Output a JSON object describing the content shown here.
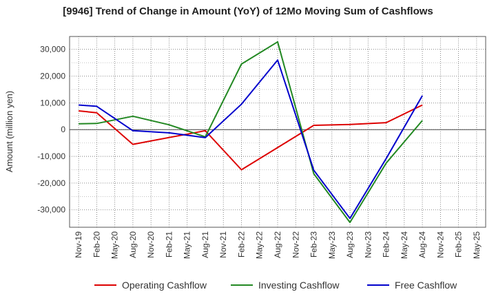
{
  "chart_data": {
    "type": "line",
    "title": "[9946]  Trend of Change in Amount (YoY) of 12Mo Moving Sum of Cashflows",
    "xlabel": "",
    "ylabel": "Amount (million yen)",
    "ylim": [
      -36500,
      34800
    ],
    "yticks": [
      30000,
      20000,
      10000,
      0,
      -10000,
      -20000,
      -30000
    ],
    "ytick_labels": [
      "30,000",
      "20,000",
      "10,000",
      "0",
      "-10,000",
      "-20,000",
      "-30,000"
    ],
    "categories": [
      "Nov-19",
      "Feb-20",
      "May-20",
      "Aug-20",
      "Nov-20",
      "Feb-21",
      "May-21",
      "Aug-21",
      "Nov-21",
      "Feb-22",
      "May-22",
      "Aug-22",
      "Nov-22",
      "Feb-23",
      "May-23",
      "Aug-23",
      "Nov-23",
      "Feb-24",
      "May-24",
      "Aug-24",
      "Nov-24",
      "Feb-25",
      "May-25"
    ],
    "grid": true,
    "legend_position": "bottom",
    "series": [
      {
        "name": "Operating Cashflow",
        "color": "#dd0000",
        "points": [
          [
            0,
            7000
          ],
          [
            1,
            6300
          ],
          [
            3,
            -5500
          ],
          [
            7,
            -400
          ],
          [
            9,
            -15000
          ],
          [
            13,
            1600
          ],
          [
            15,
            1900
          ],
          [
            17,
            2600
          ],
          [
            19,
            9200
          ]
        ]
      },
      {
        "name": "Investing Cashflow",
        "color": "#228822",
        "points": [
          [
            0,
            2200
          ],
          [
            1,
            2300
          ],
          [
            3,
            5000
          ],
          [
            5,
            1800
          ],
          [
            7,
            -2700
          ],
          [
            9,
            24500
          ],
          [
            11,
            32800
          ],
          [
            13,
            -16500
          ],
          [
            15,
            -34700
          ],
          [
            17,
            -12500
          ],
          [
            19,
            3400
          ]
        ]
      },
      {
        "name": "Free Cashflow",
        "color": "#0000cc",
        "points": [
          [
            0,
            9200
          ],
          [
            1,
            8700
          ],
          [
            3,
            -400
          ],
          [
            5,
            -1200
          ],
          [
            7,
            -3000
          ],
          [
            9,
            9500
          ],
          [
            11,
            26000
          ],
          [
            13,
            -15200
          ],
          [
            15,
            -33200
          ],
          [
            17,
            -10800
          ],
          [
            19,
            12700
          ]
        ]
      }
    ]
  }
}
